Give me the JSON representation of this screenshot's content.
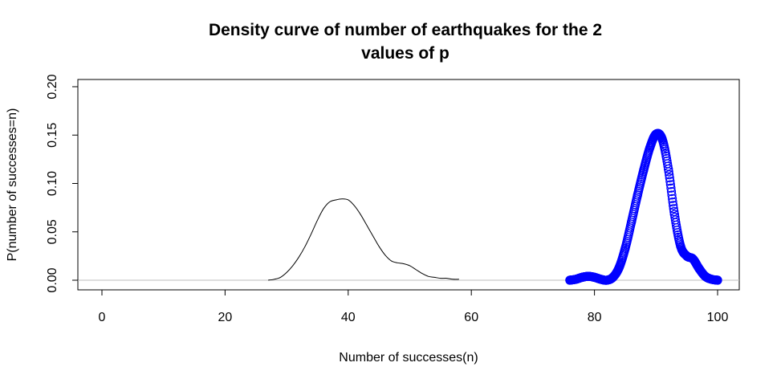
{
  "chart_data": {
    "type": "line",
    "title_lines": [
      "Density curve of number of earthquakes for the 2",
      "values of p"
    ],
    "xlabel": "Number of successes(n)",
    "ylabel": "P(number of successes=n)",
    "xlim": [
      0,
      100
    ],
    "ylim": [
      0,
      0.2
    ],
    "x_ticks": [
      "0",
      "20",
      "40",
      "60",
      "80",
      "100"
    ],
    "y_ticks": [
      "0.00",
      "0.05",
      "0.10",
      "0.15",
      "0.20"
    ],
    "reference_line": {
      "y": 0,
      "color": "#bebebe"
    },
    "series": [
      {
        "style": "line",
        "color": "#000000",
        "x": [
          27,
          28,
          29,
          30,
          31,
          32,
          33,
          34,
          35,
          36,
          37,
          38,
          39,
          40,
          41,
          42,
          43,
          44,
          45,
          46,
          47,
          48,
          49,
          50,
          51,
          52,
          53,
          54,
          55,
          56,
          57,
          58
        ],
        "y": [
          0.0,
          0.001,
          0.003,
          0.008,
          0.015,
          0.024,
          0.035,
          0.048,
          0.062,
          0.074,
          0.081,
          0.083,
          0.084,
          0.083,
          0.077,
          0.068,
          0.057,
          0.046,
          0.035,
          0.026,
          0.02,
          0.018,
          0.017,
          0.015,
          0.011,
          0.007,
          0.004,
          0.003,
          0.002,
          0.002,
          0.001,
          0.001
        ]
      },
      {
        "style": "points",
        "color": "#0000ff",
        "x": [
          76,
          77,
          78,
          79,
          80,
          81,
          82,
          83,
          84,
          85,
          86,
          87,
          88,
          89,
          90,
          91,
          92,
          93,
          94,
          95,
          96,
          97,
          98,
          99,
          100
        ],
        "y": [
          0.0,
          0.001,
          0.003,
          0.004,
          0.003,
          0.001,
          0.0,
          0.003,
          0.013,
          0.033,
          0.06,
          0.088,
          0.114,
          0.137,
          0.151,
          0.146,
          0.115,
          0.068,
          0.035,
          0.025,
          0.022,
          0.012,
          0.004,
          0.001,
          0.0
        ]
      }
    ]
  }
}
